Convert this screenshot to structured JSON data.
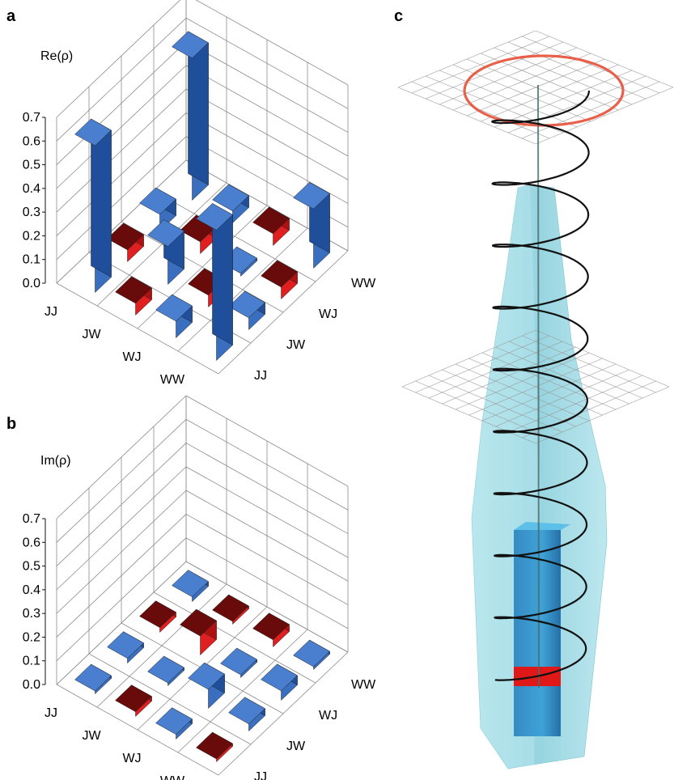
{
  "panels": {
    "a": "a",
    "b": "b",
    "c": "c"
  },
  "colors": {
    "blue_top": "#4a7fcf",
    "blue_front": "#3a6fbf",
    "blue_side": "#1f4f9a",
    "red_top": "#6a0b0b",
    "red_front": "#e02020",
    "red_side": "#b01010",
    "spiral": "#111111",
    "ring": "#e8604a",
    "cone": "#8fd3de",
    "pillar": "#2a8fc8",
    "pillar_base": "#e01818"
  },
  "chart_data": [
    {
      "type": "bar3d",
      "zlabel": "Re(ρ)",
      "zlim": [
        0,
        0.7
      ],
      "zticks": [
        "0.0",
        "0.1",
        "0.2",
        "0.3",
        "0.4",
        "0.5",
        "0.6",
        "0.7"
      ],
      "row_labels": [
        "JJ",
        "JW",
        "WJ",
        "WW"
      ],
      "col_labels": [
        "JJ",
        "JW",
        "WJ",
        "WW"
      ],
      "values": [
        [
          0.62,
          -0.05,
          0.07,
          0.6
        ],
        [
          -0.05,
          0.16,
          -0.05,
          0.05
        ],
        [
          0.07,
          -0.05,
          0.01,
          -0.05
        ],
        [
          0.55,
          0.05,
          -0.05,
          0.25
        ]
      ]
    },
    {
      "type": "bar3d",
      "zlabel": "Im(ρ)",
      "zlim": [
        0,
        0.7
      ],
      "zticks": [
        "0.0",
        "0.1",
        "0.2",
        "0.3",
        "0.4",
        "0.5",
        "0.6",
        "0.7"
      ],
      "row_labels": [
        "JJ",
        "JW",
        "WJ",
        "WW"
      ],
      "col_labels": [
        "JJ",
        "JW",
        "WJ",
        "WW"
      ],
      "values": [
        [
          0.0,
          0.02,
          -0.02,
          0.02
        ],
        [
          -0.02,
          0.0,
          -0.08,
          -0.01
        ],
        [
          0.02,
          0.08,
          0.0,
          -0.03
        ],
        [
          -0.01,
          0.03,
          0.04,
          0.0
        ]
      ]
    }
  ]
}
